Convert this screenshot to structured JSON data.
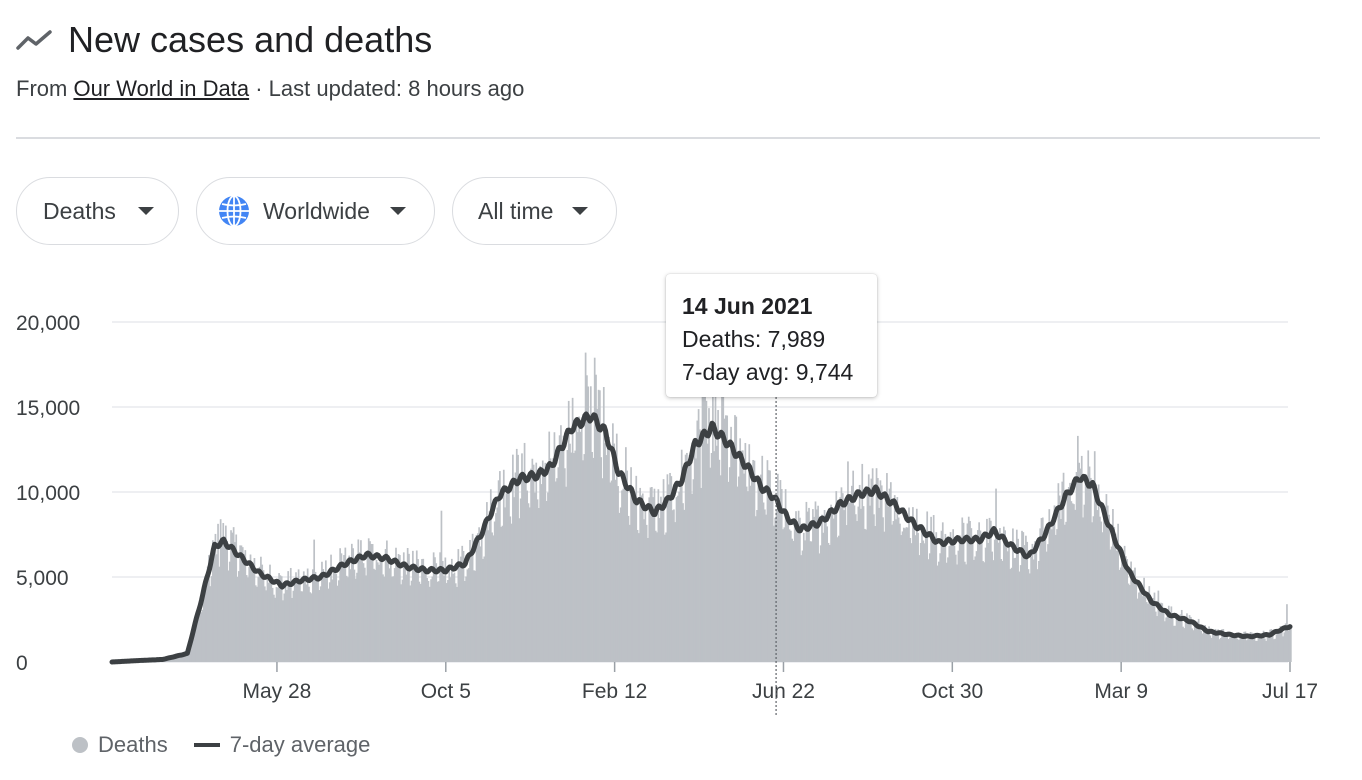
{
  "header": {
    "title": "New cases and deaths",
    "source_prefix": "From",
    "source_link": "Our World in Data",
    "updated": "· Last updated: 8 hours ago"
  },
  "filters": {
    "metric": "Deaths",
    "region": "Worldwide",
    "range": "All time"
  },
  "tooltip": {
    "date": "14 Jun 2021",
    "deaths": "Deaths: 7,989",
    "avg": "7-day avg: 9,744"
  },
  "legend": {
    "bars": "Deaths",
    "line": "7-day average"
  },
  "colors": {
    "bars": "#bdc1c6",
    "line": "#3c4043",
    "grid": "#e8eaed",
    "globe": "#4285f4"
  },
  "chart_data": {
    "type": "bar",
    "title": "New cases and deaths",
    "ylim": [
      0,
      20000
    ],
    "yticks": [
      0,
      5000,
      10000,
      15000,
      20000
    ],
    "ytick_labels": [
      "0",
      "5,000",
      "10,000",
      "15,000",
      "20,000"
    ],
    "xlim": [
      "2020-01-22",
      "2022-07-17"
    ],
    "xticks": [
      "2020-05-28",
      "2020-10-05",
      "2021-02-12",
      "2021-06-22",
      "2021-10-30",
      "2022-03-09",
      "2022-07-17"
    ],
    "xtick_labels": [
      "May 28",
      "Oct 5",
      "Feb 12",
      "Jun 22",
      "Oct 30",
      "Mar 9",
      "Jul 17"
    ],
    "highlight": {
      "date": "2021-06-14",
      "deaths": 7989,
      "avg": 9744
    },
    "series": [
      {
        "name": "7-day average",
        "role": "line",
        "points": [
          [
            "2020-01-22",
            0
          ],
          [
            "2020-02-10",
            80
          ],
          [
            "2020-03-01",
            150
          ],
          [
            "2020-03-20",
            500
          ],
          [
            "2020-04-01",
            4000
          ],
          [
            "2020-04-10",
            6800
          ],
          [
            "2020-04-17",
            7100
          ],
          [
            "2020-04-30",
            6200
          ],
          [
            "2020-05-15",
            5200
          ],
          [
            "2020-06-01",
            4500
          ],
          [
            "2020-06-15",
            4800
          ],
          [
            "2020-07-01",
            5000
          ],
          [
            "2020-07-20",
            5800
          ],
          [
            "2020-08-05",
            6300
          ],
          [
            "2020-08-20",
            6100
          ],
          [
            "2020-09-05",
            5600
          ],
          [
            "2020-09-20",
            5400
          ],
          [
            "2020-10-05",
            5400
          ],
          [
            "2020-10-20",
            5800
          ],
          [
            "2020-11-01",
            7500
          ],
          [
            "2020-11-15",
            9800
          ],
          [
            "2020-12-01",
            10800
          ],
          [
            "2020-12-15",
            11000
          ],
          [
            "2020-12-25",
            11500
          ],
          [
            "2021-01-10",
            13800
          ],
          [
            "2021-01-25",
            14500
          ],
          [
            "2021-02-05",
            13500
          ],
          [
            "2021-02-15",
            11200
          ],
          [
            "2021-03-01",
            9500
          ],
          [
            "2021-03-15",
            8800
          ],
          [
            "2021-03-25",
            9500
          ],
          [
            "2021-04-05",
            10800
          ],
          [
            "2021-04-15",
            12800
          ],
          [
            "2021-04-28",
            13800
          ],
          [
            "2021-05-10",
            12900
          ],
          [
            "2021-05-25",
            11500
          ],
          [
            "2021-06-05",
            10300
          ],
          [
            "2021-06-14",
            9744
          ],
          [
            "2021-06-25",
            8500
          ],
          [
            "2021-07-05",
            7800
          ],
          [
            "2021-07-20",
            8200
          ],
          [
            "2021-08-05",
            9300
          ],
          [
            "2021-08-20",
            9900
          ],
          [
            "2021-09-01",
            10100
          ],
          [
            "2021-09-15",
            9300
          ],
          [
            "2021-10-01",
            8100
          ],
          [
            "2021-10-20",
            7000
          ],
          [
            "2021-11-05",
            7200
          ],
          [
            "2021-11-20",
            7200
          ],
          [
            "2021-12-01",
            7700
          ],
          [
            "2021-12-15",
            6800
          ],
          [
            "2021-12-28",
            6200
          ],
          [
            "2022-01-10",
            7600
          ],
          [
            "2022-01-25",
            9700
          ],
          [
            "2022-02-05",
            10900
          ],
          [
            "2022-02-15",
            10400
          ],
          [
            "2022-03-01",
            7800
          ],
          [
            "2022-03-15",
            5300
          ],
          [
            "2022-04-01",
            3600
          ],
          [
            "2022-04-15",
            2800
          ],
          [
            "2022-05-01",
            2400
          ],
          [
            "2022-05-15",
            1800
          ],
          [
            "2022-06-01",
            1600
          ],
          [
            "2022-06-15",
            1500
          ],
          [
            "2022-07-01",
            1600
          ],
          [
            "2022-07-10",
            1900
          ],
          [
            "2022-07-17",
            2100
          ]
        ]
      },
      {
        "name": "Deaths",
        "role": "bars",
        "note": "daily values fluctuate around the 7-day average; selected visible spikes",
        "spikes": [
          [
            "2020-04-14",
            8400
          ],
          [
            "2020-06-25",
            7200
          ],
          [
            "2020-10-01",
            8900
          ],
          [
            "2021-01-20",
            18200
          ],
          [
            "2021-01-27",
            17900
          ],
          [
            "2021-04-20",
            16500
          ],
          [
            "2021-05-05",
            16000
          ],
          [
            "2021-08-10",
            11800
          ],
          [
            "2021-09-01",
            11400
          ],
          [
            "2021-12-02",
            10200
          ],
          [
            "2022-02-03",
            13300
          ],
          [
            "2022-02-16",
            12400
          ],
          [
            "2022-03-02",
            9000
          ],
          [
            "2022-04-06",
            4200
          ],
          [
            "2022-07-14",
            3400
          ]
        ]
      }
    ]
  }
}
